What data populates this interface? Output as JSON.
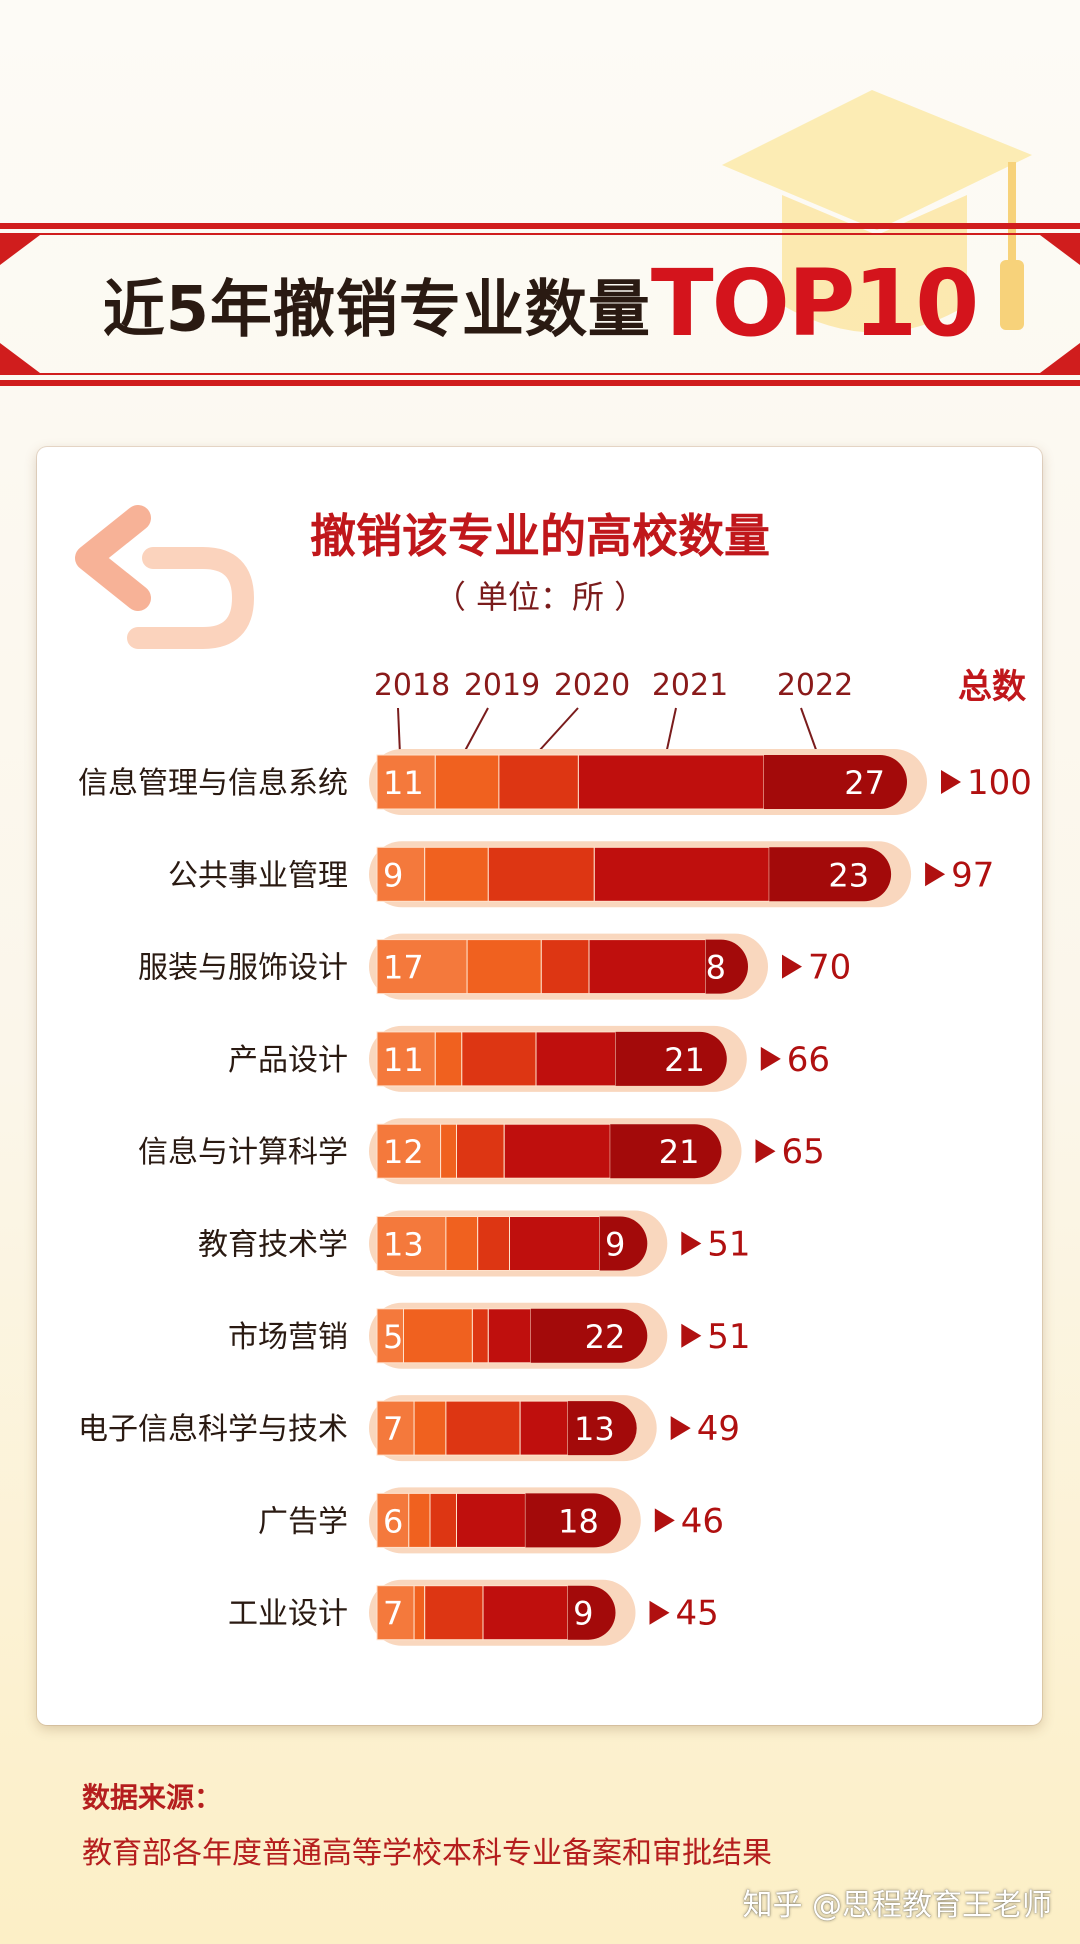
{
  "header": {
    "title_main": "近5年撤销专业数量",
    "title_accent": "TOP10"
  },
  "chart_data": {
    "type": "bar",
    "title": "撤销该专业的高校数量",
    "unit": "（ 单位：所 ）",
    "years": [
      "2018",
      "2019",
      "2020",
      "2021",
      "2022"
    ],
    "total_label": "总数",
    "categories": [
      "信息管理与信息系统",
      "公共事业管理",
      "服装与服饰设计",
      "产品设计",
      "信息与计算科学",
      "教育技术学",
      "市场营销",
      "电子信息科学与技术",
      "广告学",
      "工业设计"
    ],
    "series": [
      {
        "name": "2018",
        "values": [
          11,
          9,
          17,
          11,
          12,
          13,
          5,
          7,
          6,
          7
        ]
      },
      {
        "name": "2019",
        "values": [
          12,
          12,
          14,
          5,
          3,
          6,
          13,
          6,
          4,
          2
        ]
      },
      {
        "name": "2020",
        "values": [
          15,
          20,
          9,
          14,
          9,
          6,
          3,
          14,
          5,
          11
        ]
      },
      {
        "name": "2021",
        "values": [
          35,
          33,
          22,
          15,
          20,
          17,
          8,
          9,
          13,
          16
        ]
      },
      {
        "name": "2022",
        "values": [
          27,
          23,
          8,
          21,
          21,
          9,
          22,
          13,
          18,
          9
        ]
      }
    ],
    "labeled_values": {
      "first": [
        "11",
        "9",
        "17",
        "11",
        "12",
        "13",
        "5",
        "7",
        "6",
        "7"
      ],
      "last": [
        "27",
        "23",
        "8",
        "21",
        "21",
        "9",
        "22",
        "13",
        "18",
        "9"
      ]
    },
    "totals": [
      "100",
      "97",
      "70",
      "66",
      "65",
      "51",
      "51",
      "49",
      "46",
      "45"
    ],
    "total_values": [
      100,
      97,
      70,
      66,
      65,
      51,
      51,
      49,
      46,
      45
    ],
    "colors": [
      "#f4793c",
      "#f0611f",
      "#dd3613",
      "#bf0f0d",
      "#a30a0a"
    ],
    "track_color": "#f9d7be",
    "accent_color": "#c0171b"
  },
  "footer": {
    "source_label": "数据来源：",
    "source_text": "教育部各年度普通高等学校本科专业备案和审批结果",
    "watermark": "知乎 @思程教育王老师"
  }
}
